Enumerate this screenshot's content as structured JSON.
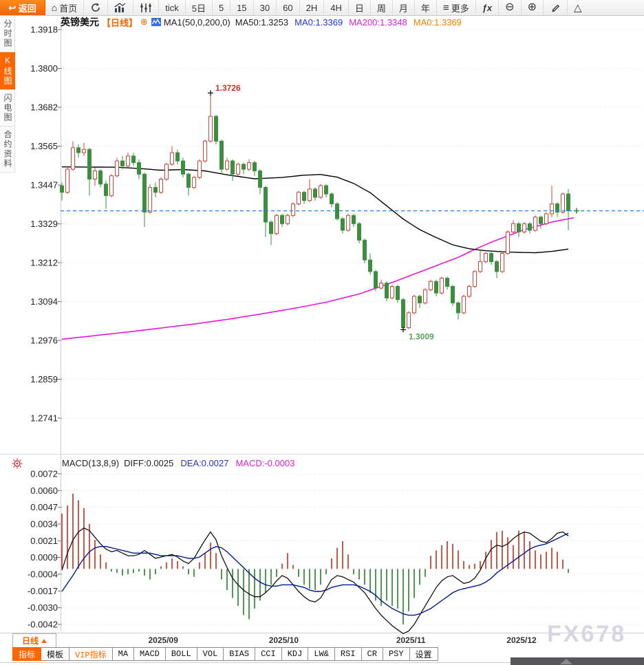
{
  "app": {
    "watermark": "FX678"
  },
  "icons": {
    "back_arrow": "↩",
    "home": "⌂",
    "more_bars": "≡",
    "fx": "ƒx",
    "zoom_out": "⊖",
    "zoom_in": "⊕",
    "triangle": "△",
    "circle_plus": "⊕",
    "dropdown_up": "▲"
  },
  "toolbar": {
    "back_label": "返回",
    "home_label": "首页",
    "periods": [
      "tick",
      "5日",
      "5",
      "15",
      "30",
      "60",
      "2H",
      "4H",
      "日",
      "周",
      "月",
      "年"
    ],
    "more_label": "更多"
  },
  "sidebar": {
    "items": [
      {
        "label": "分时图",
        "active": false
      },
      {
        "label": "K线图",
        "active": true
      },
      {
        "label": "闪电图",
        "active": false
      },
      {
        "label": "合约资料",
        "active": false
      }
    ]
  },
  "chart_header": {
    "symbol": "英镑美元",
    "period_tag": "【日线】",
    "ma_settings": "MA1(50,0,200,0)",
    "ma50": "MA50:1.3253",
    "ma0_blue": "MA0:1.3369",
    "ma200": "MA200:1.3348",
    "ma0_orange": "MA0:1.3369"
  },
  "macd_header": {
    "title": "MACD(13,8,9)",
    "diff": "DIFF:0.0025",
    "dea": "DEA:0.0027",
    "macd": "MACD:-0.0003"
  },
  "bottom": {
    "period_selector": "日线",
    "tabs": [
      "指标",
      "模板",
      "VIP指标",
      "MA",
      "MACD",
      "BOLL",
      "VOL",
      "BIAS",
      "CCI",
      "KDJ",
      "LW&",
      "RSI",
      "CR",
      "PSY",
      "设置"
    ]
  },
  "colors": {
    "accent": "#ff6600",
    "up": "#cc4433",
    "down": "#3a8f3e",
    "ma50": "#000000",
    "ma200": "#e816d8",
    "diff": "#111111",
    "dea": "#001a8c",
    "current_line": "#2288ee",
    "grid": "#dedede",
    "axis_text": "#222222",
    "annotation_high": "#cc3322",
    "annotation_low": "#5aa05a",
    "marker": "#000000"
  },
  "chart_data": {
    "type": "candlestick+macd",
    "title": "英镑美元 日线 (GBP/USD daily)",
    "price_ticks": [
      "1.3918",
      "1.3800",
      "1.3682",
      "1.3565",
      "1.3447",
      "1.3329",
      "1.3212",
      "1.3094",
      "1.2976",
      "1.2859",
      "1.2741"
    ],
    "macd_ticks": [
      "0.0072",
      "0.0060",
      "0.0047",
      "0.0034",
      "0.0021",
      "0.0009",
      "-0.0004",
      "-0.0017",
      "-0.0030",
      "-0.0042"
    ],
    "x_labels": [
      {
        "label": "2025/09",
        "i": 18.4
      },
      {
        "label": "2025/10",
        "i": 40.3
      },
      {
        "label": "2025/11",
        "i": 63.4
      },
      {
        "label": "2025/12",
        "i": 83.5
      }
    ],
    "current_price": 1.3369,
    "annotations": {
      "high": {
        "i": 27,
        "price": 1.3726,
        "label": "1.3726"
      },
      "low": {
        "i": 62,
        "price": 1.3009,
        "label": "1.3009"
      }
    },
    "candles": [
      [
        1.3445,
        1.3455,
        1.34,
        1.3425
      ],
      [
        1.3425,
        1.3505,
        1.342,
        1.3495
      ],
      [
        1.3495,
        1.358,
        1.349,
        1.356
      ],
      [
        1.356,
        1.357,
        1.353,
        1.3545
      ],
      [
        1.3545,
        1.3575,
        1.3535,
        1.3555
      ],
      [
        1.3555,
        1.356,
        1.3415,
        1.3465
      ],
      [
        1.3465,
        1.35,
        1.3445,
        1.349
      ],
      [
        1.349,
        1.3495,
        1.344,
        1.345
      ],
      [
        1.345,
        1.346,
        1.3375,
        1.3415
      ],
      [
        1.3415,
        1.348,
        1.341,
        1.3475
      ],
      [
        1.3475,
        1.353,
        1.347,
        1.352
      ],
      [
        1.352,
        1.3535,
        1.3495,
        1.3505
      ],
      [
        1.3505,
        1.3545,
        1.35,
        1.3535
      ],
      [
        1.3535,
        1.3545,
        1.3505,
        1.3515
      ],
      [
        1.3515,
        1.3525,
        1.3465,
        1.348
      ],
      [
        1.348,
        1.3485,
        1.332,
        1.3365
      ],
      [
        1.3365,
        1.345,
        1.336,
        1.344
      ],
      [
        1.344,
        1.3455,
        1.341,
        1.3425
      ],
      [
        1.3425,
        1.347,
        1.342,
        1.3465
      ],
      [
        1.3465,
        1.3515,
        1.346,
        1.351
      ],
      [
        1.351,
        1.3565,
        1.3505,
        1.3545
      ],
      [
        1.3545,
        1.3555,
        1.351,
        1.352
      ],
      [
        1.352,
        1.353,
        1.347,
        1.348
      ],
      [
        1.348,
        1.3485,
        1.3415,
        1.344
      ],
      [
        1.344,
        1.3475,
        1.3435,
        1.347
      ],
      [
        1.347,
        1.3525,
        1.3465,
        1.352
      ],
      [
        1.352,
        1.3585,
        1.3515,
        1.358
      ],
      [
        1.358,
        1.3726,
        1.3575,
        1.3655
      ],
      [
        1.3655,
        1.366,
        1.357,
        1.358
      ],
      [
        1.358,
        1.3585,
        1.348,
        1.3495
      ],
      [
        1.3495,
        1.353,
        1.349,
        1.352
      ],
      [
        1.352,
        1.3525,
        1.346,
        1.348
      ],
      [
        1.348,
        1.3515,
        1.3475,
        1.351
      ],
      [
        1.351,
        1.3515,
        1.348,
        1.3495
      ],
      [
        1.3495,
        1.3525,
        1.349,
        1.3515
      ],
      [
        1.3515,
        1.352,
        1.3475,
        1.349
      ],
      [
        1.349,
        1.3495,
        1.342,
        1.344
      ],
      [
        1.344,
        1.3445,
        1.329,
        1.3335
      ],
      [
        1.3335,
        1.334,
        1.3265,
        1.33
      ],
      [
        1.33,
        1.336,
        1.3295,
        1.3355
      ],
      [
        1.3355,
        1.336,
        1.332,
        1.333
      ],
      [
        1.333,
        1.336,
        1.3325,
        1.3355
      ],
      [
        1.3355,
        1.3395,
        1.335,
        1.339
      ],
      [
        1.339,
        1.343,
        1.3385,
        1.3425
      ],
      [
        1.3425,
        1.343,
        1.339,
        1.34
      ],
      [
        1.34,
        1.3465,
        1.3395,
        1.3435
      ],
      [
        1.3435,
        1.344,
        1.34,
        1.341
      ],
      [
        1.341,
        1.345,
        1.3405,
        1.3445
      ],
      [
        1.3445,
        1.345,
        1.341,
        1.342
      ],
      [
        1.342,
        1.3425,
        1.338,
        1.339
      ],
      [
        1.339,
        1.3395,
        1.334,
        1.3345
      ],
      [
        1.3345,
        1.335,
        1.33,
        1.331
      ],
      [
        1.331,
        1.336,
        1.3305,
        1.3355
      ],
      [
        1.3355,
        1.336,
        1.332,
        1.333
      ],
      [
        1.333,
        1.3335,
        1.327,
        1.328
      ],
      [
        1.328,
        1.3285,
        1.321,
        1.322
      ],
      [
        1.322,
        1.324,
        1.3175,
        1.3185
      ],
      [
        1.3185,
        1.319,
        1.3125,
        1.3135
      ],
      [
        1.3135,
        1.316,
        1.313,
        1.315
      ],
      [
        1.315,
        1.3155,
        1.3095,
        1.3105
      ],
      [
        1.3105,
        1.3145,
        1.31,
        1.314
      ],
      [
        1.314,
        1.3145,
        1.309,
        1.31
      ],
      [
        1.31,
        1.3105,
        1.3009,
        1.3015
      ],
      [
        1.3015,
        1.3065,
        1.301,
        1.306
      ],
      [
        1.306,
        1.3115,
        1.3055,
        1.311
      ],
      [
        1.311,
        1.3115,
        1.3075,
        1.309
      ],
      [
        1.309,
        1.3135,
        1.3085,
        1.313
      ],
      [
        1.313,
        1.316,
        1.3125,
        1.3155
      ],
      [
        1.3155,
        1.316,
        1.311,
        1.312
      ],
      [
        1.312,
        1.317,
        1.3115,
        1.3165
      ],
      [
        1.3165,
        1.317,
        1.313,
        1.314
      ],
      [
        1.314,
        1.3145,
        1.308,
        1.309
      ],
      [
        1.309,
        1.3095,
        1.304,
        1.306
      ],
      [
        1.306,
        1.3115,
        1.3055,
        1.311
      ],
      [
        1.311,
        1.3145,
        1.3105,
        1.314
      ],
      [
        1.314,
        1.319,
        1.3135,
        1.3185
      ],
      [
        1.3185,
        1.325,
        1.318,
        1.3215
      ],
      [
        1.3215,
        1.3245,
        1.321,
        1.324
      ],
      [
        1.324,
        1.3245,
        1.3205,
        1.3215
      ],
      [
        1.3215,
        1.322,
        1.3165,
        1.3185
      ],
      [
        1.3185,
        1.3245,
        1.318,
        1.324
      ],
      [
        1.324,
        1.331,
        1.3235,
        1.3305
      ],
      [
        1.3305,
        1.334,
        1.33,
        1.333
      ],
      [
        1.333,
        1.3335,
        1.329,
        1.3305
      ],
      [
        1.3305,
        1.3335,
        1.33,
        1.333
      ],
      [
        1.333,
        1.3335,
        1.33,
        1.331
      ],
      [
        1.331,
        1.3355,
        1.3305,
        1.335
      ],
      [
        1.335,
        1.3355,
        1.3315,
        1.333
      ],
      [
        1.333,
        1.3365,
        1.3325,
        1.336
      ],
      [
        1.336,
        1.3445,
        1.335,
        1.339
      ],
      [
        1.339,
        1.3395,
        1.335,
        1.3365
      ],
      [
        1.3365,
        1.3425,
        1.336,
        1.342
      ],
      [
        1.342,
        1.3435,
        1.331,
        1.3369
      ]
    ],
    "ma50_keypoints": [
      [
        0,
        1.3502
      ],
      [
        10,
        1.3501
      ],
      [
        15,
        1.3496
      ],
      [
        18,
        1.3492
      ],
      [
        22,
        1.3494
      ],
      [
        26,
        1.349
      ],
      [
        30,
        1.3478
      ],
      [
        35,
        1.3466
      ],
      [
        40,
        1.347
      ],
      [
        44,
        1.3477
      ],
      [
        47,
        1.3479
      ],
      [
        50,
        1.3471
      ],
      [
        53,
        1.3452
      ],
      [
        56,
        1.3424
      ],
      [
        59,
        1.3384
      ],
      [
        62,
        1.3344
      ],
      [
        65,
        1.3312
      ],
      [
        68,
        1.3288
      ],
      [
        71,
        1.3266
      ],
      [
        74,
        1.3254
      ],
      [
        77,
        1.3248
      ],
      [
        80,
        1.3245
      ],
      [
        83,
        1.3243
      ],
      [
        86,
        1.3242
      ],
      [
        89,
        1.3246
      ],
      [
        92,
        1.3253
      ]
    ],
    "ma200_keypoints": [
      [
        0,
        1.298
      ],
      [
        6,
        1.2991
      ],
      [
        12,
        1.3002
      ],
      [
        18,
        1.3014
      ],
      [
        24,
        1.3026
      ],
      [
        30,
        1.304
      ],
      [
        36,
        1.3056
      ],
      [
        42,
        1.3073
      ],
      [
        48,
        1.3092
      ],
      [
        54,
        1.3117
      ],
      [
        60,
        1.3152
      ],
      [
        66,
        1.319
      ],
      [
        72,
        1.3228
      ],
      [
        75,
        1.3252
      ],
      [
        78,
        1.3274
      ],
      [
        84,
        1.3312
      ],
      [
        89,
        1.3335
      ],
      [
        93,
        1.3348
      ]
    ],
    "macd": {
      "diff": [
        -0.0001,
        0.0012,
        0.0022,
        0.0028,
        0.0031,
        0.0029,
        0.0024,
        0.0019,
        0.0015,
        0.0013,
        0.0014,
        0.0012,
        0.001,
        0.001,
        0.0011,
        0.0014,
        0.0011,
        0.0008,
        0.0009,
        0.001,
        0.0011,
        0.0009,
        0.0006,
        0.0004,
        0.0008,
        0.0015,
        0.0022,
        0.0028,
        0.0022,
        0.001,
        0.0001,
        -0.0007,
        -0.0012,
        -0.0016,
        -0.0019,
        -0.0021,
        -0.0021,
        -0.0018,
        -0.0014,
        -0.0009,
        -0.0005,
        -0.0007,
        -0.0012,
        -0.0017,
        -0.0021,
        -0.0024,
        -0.0025,
        -0.0022,
        -0.0015,
        -0.0008,
        -0.0005,
        -0.0006,
        -0.0008,
        -0.001,
        -0.0014,
        -0.0018,
        -0.0024,
        -0.003,
        -0.0035,
        -0.0039,
        -0.0043,
        -0.0046,
        -0.0049,
        -0.0047,
        -0.0042,
        -0.0035,
        -0.0028,
        -0.0021,
        -0.0014,
        -0.0009,
        -0.0006,
        -0.0005,
        -0.0008,
        -0.0011,
        -0.001,
        -0.0007,
        -0.0001,
        0.0008,
        0.0015,
        0.0018,
        0.0017,
        0.0019,
        0.0023,
        0.0026,
        0.0028,
        0.0027,
        0.0024,
        0.0021,
        0.002,
        0.0023,
        0.0027,
        0.0028,
        0.0025
      ],
      "dea": [
        -0.0017,
        -0.0011,
        -0.0005,
        0.0002,
        0.0008,
        0.0013,
        0.0016,
        0.0017,
        0.0017,
        0.0016,
        0.0015,
        0.0014,
        0.0013,
        0.0012,
        0.0012,
        0.0012,
        0.0012,
        0.0011,
        0.001,
        0.001,
        0.001,
        0.001,
        0.0009,
        0.0008,
        0.0008,
        0.0009,
        0.0012,
        0.0015,
        0.0017,
        0.0016,
        0.0013,
        0.0009,
        0.0005,
        0.0001,
        -0.0003,
        -0.0007,
        -0.001,
        -0.0012,
        -0.0013,
        -0.0013,
        -0.0012,
        -0.0012,
        -0.0012,
        -0.0013,
        -0.0014,
        -0.0016,
        -0.0017,
        -0.0017,
        -0.0016,
        -0.0014,
        -0.0013,
        -0.0012,
        -0.0012,
        -0.0012,
        -0.0013,
        -0.0015,
        -0.0017,
        -0.002,
        -0.0024,
        -0.0027,
        -0.003,
        -0.0032,
        -0.0034,
        -0.0035,
        -0.0035,
        -0.0034,
        -0.0032,
        -0.003,
        -0.0027,
        -0.0024,
        -0.0021,
        -0.0018,
        -0.0016,
        -0.0015,
        -0.0014,
        -0.0013,
        -0.0012,
        -0.001,
        -0.0007,
        -0.0003,
        0.0,
        0.0003,
        0.0006,
        0.0009,
        0.0012,
        0.0015,
        0.0017,
        0.0018,
        0.0019,
        0.0021,
        0.0023,
        0.0025,
        0.0027
      ],
      "hist": [
        0.0042,
        0.0048,
        0.0057,
        0.0052,
        0.0046,
        0.0034,
        0.0022,
        0.0011,
        0.0005,
        -0.0002,
        -0.0003,
        -0.0005,
        -0.0004,
        -0.0003,
        -0.0002,
        -0.0005,
        -0.0008,
        -0.0004,
        0.0002,
        0.0005,
        0.0008,
        0.0006,
        0.0002,
        -0.0004,
        -0.0006,
        0.0005,
        0.0012,
        0.002,
        0.0012,
        -0.0008,
        -0.0016,
        -0.0022,
        -0.0028,
        -0.0035,
        -0.0038,
        -0.003,
        -0.0024,
        -0.0018,
        -0.0012,
        -0.0006,
        0.0004,
        0.0012,
        0.0003,
        -0.0006,
        -0.0012,
        -0.0015,
        -0.0016,
        -0.0012,
        -0.0004,
        0.0008,
        0.0016,
        0.0021,
        0.0011,
        -0.0004,
        -0.0008,
        -0.0012,
        -0.0018,
        -0.0024,
        -0.0028,
        -0.0024,
        -0.0028,
        -0.003,
        -0.0042,
        -0.0032,
        -0.0022,
        -0.0012,
        -0.0006,
        0.001,
        0.0014,
        0.0018,
        0.0021,
        0.0019,
        0.0014,
        0.0006,
        0.0003,
        0.0004,
        0.0006,
        0.0013,
        0.0022,
        0.0028,
        0.0029,
        0.0024,
        0.0018,
        0.0029,
        0.0028,
        0.0021,
        0.0014,
        0.0011,
        0.0013,
        0.0016,
        0.0013,
        0.0007,
        -0.0003
      ]
    }
  }
}
